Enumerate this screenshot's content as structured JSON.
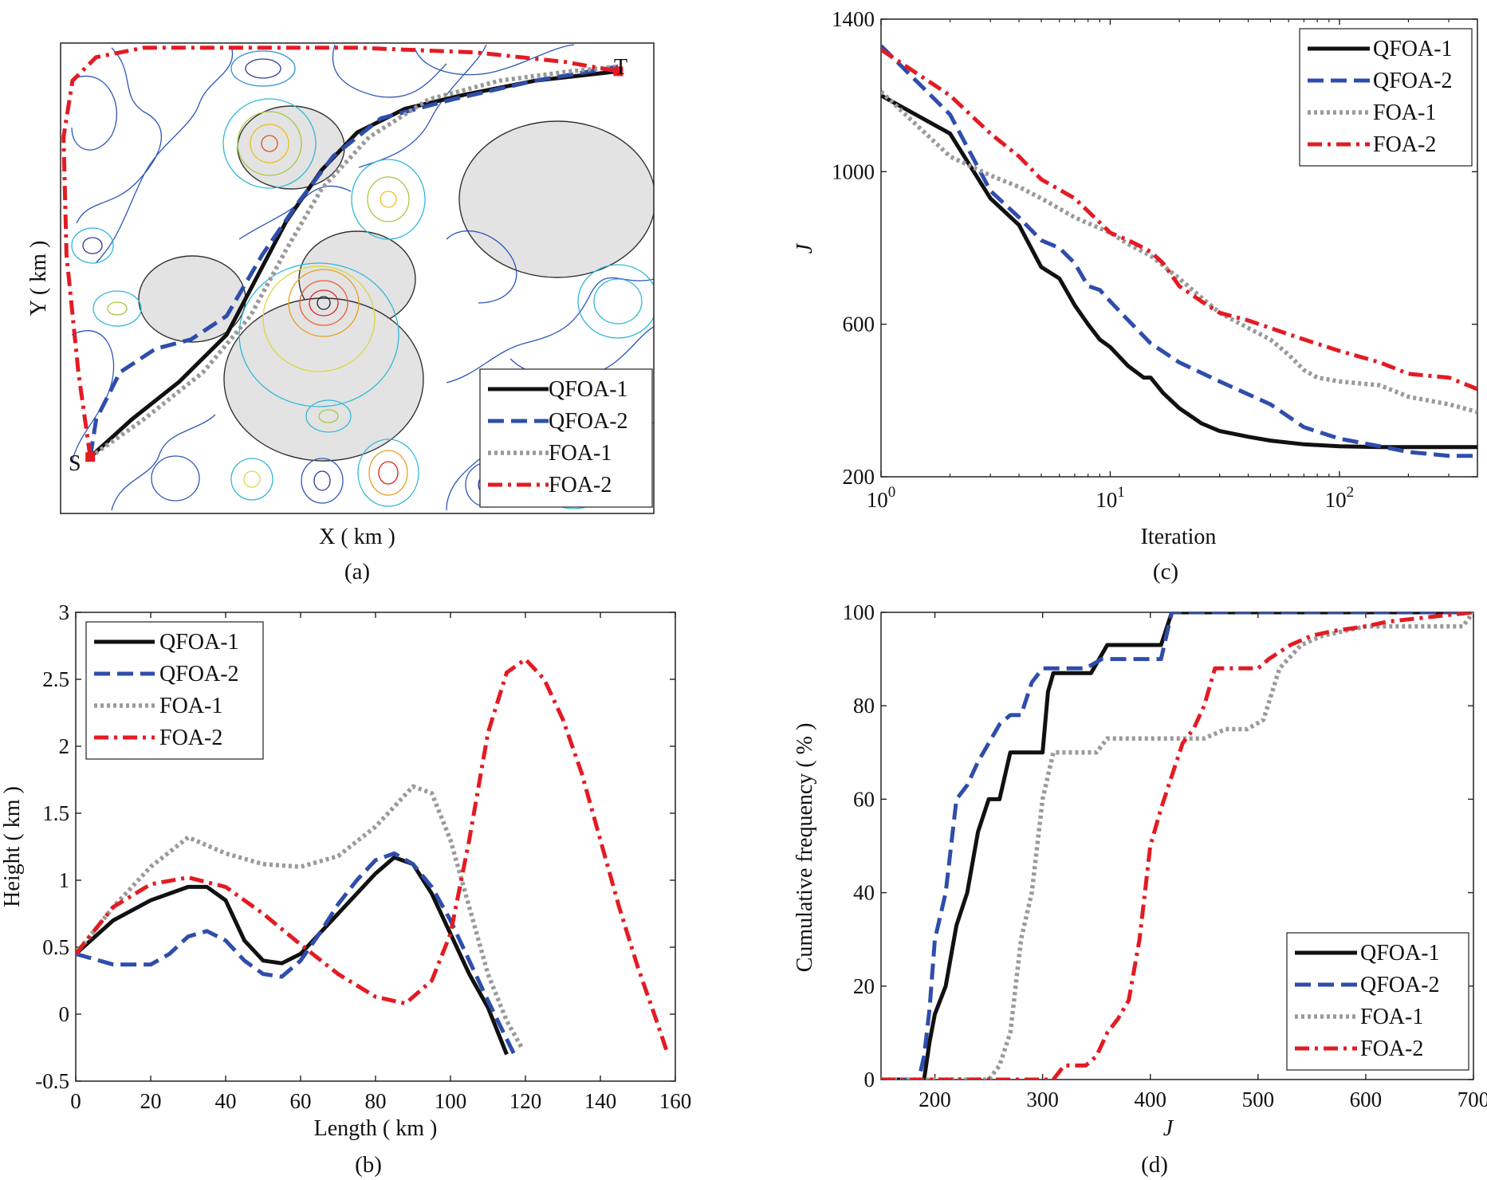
{
  "colors": {
    "QFOA-1": "#111111",
    "QFOA-2": "#2f4dab",
    "FOA-1": "#9a9a9a",
    "FOA-2": "#e31b23"
  },
  "legend_labels": [
    "QFOA-1",
    "QFOA-2",
    "FOA-1",
    "FOA-2"
  ],
  "chart_data": [
    {
      "id": "a",
      "caption": "(a)",
      "type": "line",
      "xlabel": "X ( km )",
      "ylabel": "Y ( km )",
      "point_labels": {
        "start": "S",
        "target": "T"
      },
      "legend_position": "bottom-right",
      "grid": false,
      "note": "contour map with circular threat zones; paths drawn in normalized plan coordinates (axes unlabeled)",
      "xlim": [
        0,
        1
      ],
      "ylim": [
        0,
        1
      ],
      "series": [
        {
          "name": "QFOA-1",
          "x": [
            0.05,
            0.12,
            0.2,
            0.28,
            0.33,
            0.38,
            0.44,
            0.5,
            0.58,
            0.68,
            0.8,
            0.94
          ],
          "y": [
            0.12,
            0.2,
            0.28,
            0.38,
            0.5,
            0.62,
            0.73,
            0.81,
            0.86,
            0.89,
            0.92,
            0.94
          ]
        },
        {
          "name": "QFOA-2",
          "x": [
            0.05,
            0.06,
            0.1,
            0.16,
            0.22,
            0.28,
            0.34,
            0.4,
            0.46,
            0.54,
            0.66,
            0.8,
            0.94
          ],
          "y": [
            0.12,
            0.2,
            0.3,
            0.35,
            0.37,
            0.42,
            0.55,
            0.66,
            0.76,
            0.84,
            0.88,
            0.92,
            0.95
          ]
        },
        {
          "name": "FOA-1",
          "x": [
            0.05,
            0.14,
            0.24,
            0.32,
            0.38,
            0.44,
            0.52,
            0.62,
            0.74,
            0.86,
            0.94
          ],
          "y": [
            0.12,
            0.2,
            0.3,
            0.42,
            0.56,
            0.69,
            0.8,
            0.88,
            0.92,
            0.94,
            0.95
          ]
        },
        {
          "name": "FOA-2",
          "x": [
            0.05,
            0.03,
            0.01,
            0.005,
            0.02,
            0.06,
            0.14,
            0.3,
            0.5,
            0.7,
            0.85,
            0.94
          ],
          "y": [
            0.12,
            0.3,
            0.55,
            0.8,
            0.92,
            0.97,
            0.99,
            0.99,
            0.99,
            0.98,
            0.96,
            0.94
          ]
        }
      ]
    },
    {
      "id": "b",
      "caption": "(b)",
      "type": "line",
      "xlabel": "Length ( km )",
      "ylabel": "Height ( km )",
      "xlim": [
        0,
        160
      ],
      "ylim": [
        -0.5,
        3
      ],
      "xticks": [
        "0",
        "20",
        "40",
        "60",
        "80",
        "100",
        "120",
        "140",
        "160"
      ],
      "yticks": [
        "-0.5",
        "0",
        "0.5",
        "1",
        "1.5",
        "2",
        "2.5",
        "3"
      ],
      "legend_position": "top-left",
      "grid": false,
      "series": [
        {
          "name": "QFOA-1",
          "x": [
            0,
            10,
            20,
            30,
            35,
            40,
            45,
            50,
            55,
            60,
            65,
            70,
            75,
            80,
            85,
            90,
            95,
            100,
            105,
            110,
            115
          ],
          "y": [
            0.45,
            0.7,
            0.85,
            0.95,
            0.95,
            0.85,
            0.55,
            0.4,
            0.38,
            0.45,
            0.6,
            0.75,
            0.9,
            1.05,
            1.17,
            1.12,
            0.9,
            0.6,
            0.3,
            0.05,
            -0.3
          ]
        },
        {
          "name": "QFOA-2",
          "x": [
            0,
            10,
            20,
            25,
            30,
            35,
            40,
            45,
            50,
            55,
            60,
            65,
            70,
            75,
            80,
            85,
            90,
            95,
            100,
            105,
            110,
            117
          ],
          "y": [
            0.45,
            0.37,
            0.37,
            0.45,
            0.58,
            0.62,
            0.55,
            0.4,
            0.3,
            0.28,
            0.4,
            0.6,
            0.82,
            1.0,
            1.15,
            1.2,
            1.12,
            0.95,
            0.7,
            0.4,
            0.1,
            -0.3
          ]
        },
        {
          "name": "FOA-1",
          "x": [
            0,
            10,
            20,
            30,
            40,
            50,
            60,
            70,
            80,
            90,
            95,
            100,
            105,
            110,
            115,
            119
          ],
          "y": [
            0.45,
            0.8,
            1.1,
            1.32,
            1.2,
            1.12,
            1.1,
            1.18,
            1.4,
            1.7,
            1.65,
            1.3,
            0.8,
            0.3,
            -0.05,
            -0.25
          ]
        },
        {
          "name": "FOA-2",
          "x": [
            0,
            10,
            20,
            30,
            40,
            50,
            60,
            70,
            80,
            88,
            95,
            100,
            105,
            110,
            115,
            120,
            125,
            130,
            135,
            140,
            145,
            150,
            155,
            158
          ],
          "y": [
            0.45,
            0.8,
            0.97,
            1.02,
            0.95,
            0.75,
            0.52,
            0.3,
            0.13,
            0.08,
            0.25,
            0.6,
            1.3,
            2.1,
            2.55,
            2.65,
            2.5,
            2.2,
            1.8,
            1.3,
            0.8,
            0.35,
            -0.05,
            -0.3
          ]
        }
      ]
    },
    {
      "id": "c",
      "caption": "(c)",
      "type": "line",
      "xlabel": "Iteration",
      "ylabel": "J",
      "xscale": "log",
      "xlim": [
        1,
        400
      ],
      "ylim": [
        200,
        1400
      ],
      "xticks": [
        {
          "base": "10",
          "exp": "0"
        },
        {
          "base": "10",
          "exp": "1"
        },
        {
          "base": "10",
          "exp": "2"
        }
      ],
      "yticks": [
        "200",
        "600",
        "1000",
        "1400"
      ],
      "legend_position": "top-right",
      "grid": false,
      "series": [
        {
          "name": "QFOA-1",
          "x": [
            1,
            2,
            3,
            4,
            5,
            6,
            7,
            8,
            9,
            10,
            12,
            14,
            15,
            17,
            20,
            25,
            30,
            40,
            50,
            70,
            100,
            150,
            200,
            300,
            400
          ],
          "y": [
            1200,
            1100,
            930,
            860,
            750,
            720,
            650,
            600,
            560,
            540,
            490,
            460,
            460,
            420,
            380,
            340,
            320,
            305,
            295,
            285,
            280,
            278,
            278,
            278,
            278
          ]
        },
        {
          "name": "QFOA-2",
          "x": [
            1,
            2,
            3,
            4,
            5,
            6,
            7,
            8,
            9,
            10,
            12,
            15,
            20,
            30,
            50,
            70,
            100,
            150,
            200,
            300,
            400
          ],
          "y": [
            1330,
            1150,
            950,
            880,
            820,
            800,
            760,
            700,
            690,
            660,
            610,
            550,
            500,
            450,
            390,
            330,
            300,
            280,
            265,
            255,
            255
          ]
        },
        {
          "name": "FOA-1",
          "x": [
            1,
            2,
            3,
            4,
            5,
            7,
            10,
            12,
            15,
            20,
            25,
            30,
            40,
            50,
            60,
            70,
            80,
            100,
            150,
            200,
            300,
            400
          ],
          "y": [
            1210,
            1040,
            990,
            960,
            930,
            880,
            840,
            810,
            780,
            720,
            670,
            630,
            590,
            560,
            520,
            480,
            460,
            450,
            440,
            410,
            390,
            370
          ]
        },
        {
          "name": "FOA-2",
          "x": [
            1,
            2,
            3,
            4,
            5,
            7,
            10,
            12,
            14,
            15,
            17,
            20,
            25,
            30,
            40,
            50,
            70,
            100,
            150,
            200,
            300,
            400
          ],
          "y": [
            1320,
            1200,
            1100,
            1040,
            980,
            930,
            840,
            820,
            800,
            790,
            760,
            700,
            660,
            630,
            610,
            590,
            560,
            530,
            500,
            470,
            460,
            430
          ]
        }
      ]
    },
    {
      "id": "d",
      "caption": "(d)",
      "type": "line",
      "xlabel": "J",
      "ylabel": "Cumulative frequency ( % )",
      "xlim": [
        150,
        700
      ],
      "ylim": [
        0,
        100
      ],
      "xticks": [
        "200",
        "300",
        "400",
        "500",
        "600",
        "700"
      ],
      "yticks": [
        "0",
        "20",
        "40",
        "60",
        "80",
        "100"
      ],
      "legend_position": "bottom-right",
      "grid": false,
      "series": [
        {
          "name": "QFOA-1",
          "x": [
            150,
            190,
            195,
            200,
            210,
            220,
            230,
            240,
            250,
            255,
            260,
            270,
            280,
            300,
            305,
            310,
            320,
            340,
            345,
            360,
            410,
            420,
            700
          ],
          "y": [
            0,
            0,
            8,
            14,
            20,
            33,
            40,
            53,
            60,
            60,
            60,
            70,
            70,
            70,
            83,
            87,
            87,
            87,
            87,
            93,
            93,
            100,
            100
          ]
        },
        {
          "name": "QFOA-2",
          "x": [
            150,
            185,
            190,
            195,
            200,
            210,
            220,
            230,
            240,
            250,
            260,
            270,
            280,
            290,
            300,
            340,
            355,
            360,
            410,
            420,
            700
          ],
          "y": [
            0,
            0,
            5,
            15,
            30,
            40,
            60,
            63,
            68,
            72,
            76,
            78,
            78,
            85,
            88,
            88,
            90,
            90,
            90,
            100,
            100
          ]
        },
        {
          "name": "FOA-1",
          "x": [
            150,
            250,
            260,
            270,
            280,
            290,
            300,
            310,
            340,
            350,
            360,
            430,
            440,
            450,
            470,
            490,
            505,
            520,
            540,
            560,
            600,
            690,
            700
          ],
          "y": [
            0,
            0,
            3,
            10,
            30,
            40,
            60,
            70,
            70,
            70,
            73,
            73,
            73,
            73,
            75,
            75,
            77,
            88,
            93,
            95,
            97,
            97,
            100
          ]
        },
        {
          "name": "FOA-2",
          "x": [
            150,
            300,
            310,
            320,
            340,
            350,
            360,
            370,
            380,
            390,
            400,
            410,
            420,
            430,
            440,
            450,
            460,
            470,
            480,
            500,
            510,
            530,
            550,
            570,
            600,
            620,
            700
          ],
          "y": [
            0,
            0,
            0,
            3,
            3,
            5,
            10,
            13,
            17,
            30,
            50,
            58,
            65,
            72,
            75,
            80,
            88,
            88,
            88,
            88,
            90,
            93,
            95,
            96,
            97,
            98,
            100
          ]
        }
      ]
    }
  ]
}
